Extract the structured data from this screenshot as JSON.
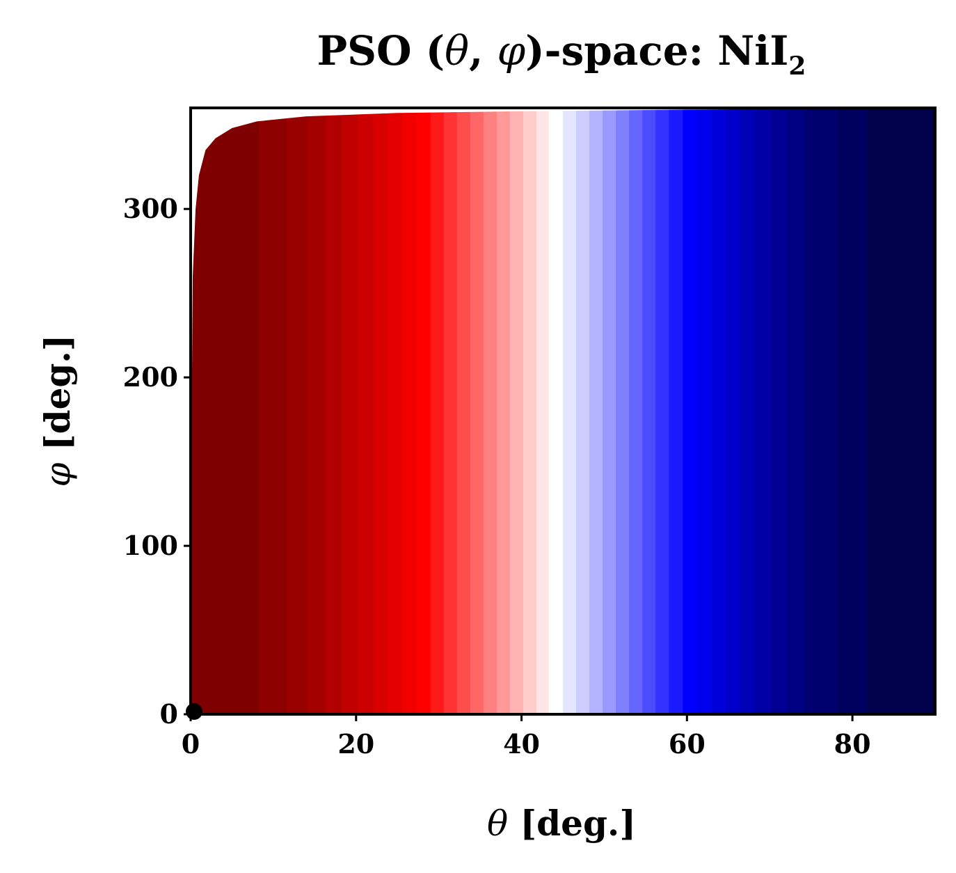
{
  "chart_data": {
    "type": "heatmap",
    "title": {
      "prefix": "PSO (",
      "theta_symbol": "θ",
      "separator": ", ",
      "phi_symbol": "φ",
      "suffix": ")-space: NiI",
      "subscript": "2"
    },
    "xlabel": {
      "symbol": "θ",
      "text": " [deg.]"
    },
    "ylabel": {
      "symbol": "φ",
      "text": " [deg.]"
    },
    "xlim": [
      0,
      90
    ],
    "ylim": [
      0,
      360
    ],
    "xticks": [
      0,
      20,
      40,
      60,
      80
    ],
    "yticks": [
      0,
      100,
      200,
      300
    ],
    "colormap": "seismic",
    "color_stops": [
      "#00004c",
      "#0000ff",
      "#ffffff",
      "#ff0000",
      "#7f0000"
    ],
    "contour_boundaries_theta": [
      8.2,
      11.6,
      14.1,
      16.3,
      18.3,
      20.2,
      22.1,
      23.9,
      25.6,
      27.3,
      29.0,
      30.6,
      32.2,
      33.8,
      35.4,
      37.0,
      38.6,
      40.2,
      41.8,
      43.3,
      45.0,
      46.6,
      48.2,
      49.8,
      51.4,
      53.0,
      54.6,
      56.2,
      57.8,
      59.5,
      61.2,
      62.9,
      64.6,
      66.4,
      68.2,
      70.1,
      72.1,
      74.2,
      78.2,
      81.8
    ],
    "upper_edge_profile": [
      [
        0.1,
        160
      ],
      [
        0.25,
        260
      ],
      [
        0.6,
        300
      ],
      [
        1,
        320
      ],
      [
        1.8,
        335
      ],
      [
        3,
        342
      ],
      [
        5,
        348
      ],
      [
        8,
        352
      ],
      [
        14,
        355
      ],
      [
        25,
        357
      ],
      [
        40,
        358
      ],
      [
        60,
        359
      ],
      [
        90,
        360
      ]
    ],
    "marker": {
      "theta": 0,
      "phi": 0,
      "color": "#000000"
    }
  }
}
